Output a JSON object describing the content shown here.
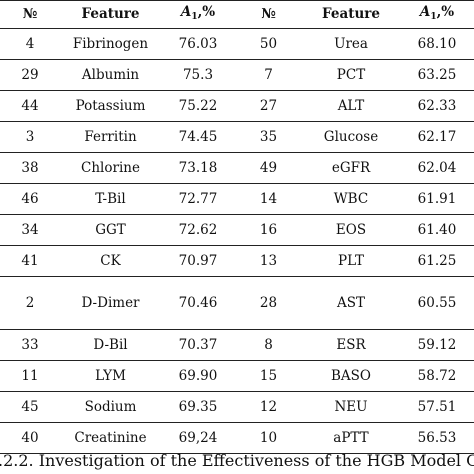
{
  "table": {
    "headers": {
      "num": "№",
      "feature": "Feature",
      "a_symbol": "A",
      "a_sub": "1",
      "a_unit": ",%"
    },
    "rows": [
      {
        "n1": "4",
        "f1": "Fibrinogen",
        "v1": "76.03",
        "n2": "50",
        "f2": "Urea",
        "v2": "68.10"
      },
      {
        "n1": "29",
        "f1": "Albumin",
        "v1": "75.3",
        "n2": "7",
        "f2": "PCT",
        "v2": "63.25"
      },
      {
        "n1": "44",
        "f1": "Potassium",
        "v1": "75.22",
        "n2": "27",
        "f2": "ALT",
        "v2": "62.33"
      },
      {
        "n1": "3",
        "f1": "Ferritin",
        "v1": "74.45",
        "n2": "35",
        "f2": "Glucose",
        "v2": "62.17"
      },
      {
        "n1": "38",
        "f1": "Chlorine",
        "v1": "73.18",
        "n2": "49",
        "f2": "eGFR",
        "v2": "62.04"
      },
      {
        "n1": "46",
        "f1": "T-Bil",
        "v1": "72.77",
        "n2": "14",
        "f2": "WBC",
        "v2": "61.91"
      },
      {
        "n1": "34",
        "f1": "GGT",
        "v1": "72.62",
        "n2": "16",
        "f2": "EOS",
        "v2": "61.40"
      },
      {
        "n1": "41",
        "f1": "CK",
        "v1": "70.97",
        "n2": "13",
        "f2": "PLT",
        "v2": "61.25"
      },
      {
        "n1": "2",
        "f1": "D-Dimer",
        "v1": "70.46",
        "n2": "28",
        "f2": "AST",
        "v2": "60.55"
      },
      {
        "n1": "33",
        "f1": "D-Bil",
        "v1": "70.37",
        "n2": "8",
        "f2": "ESR",
        "v2": "59.12"
      },
      {
        "n1": "11",
        "f1": "LYM",
        "v1": "69.90",
        "n2": "15",
        "f2": "BASO",
        "v2": "58.72"
      },
      {
        "n1": "45",
        "f1": "Sodium",
        "v1": "69.35",
        "n2": "12",
        "f2": "NEU",
        "v2": "57.51"
      },
      {
        "n1": "40",
        "f1": "Creatinine",
        "v1": "69,24",
        "n2": "10",
        "f2": "aPTT",
        "v2": "56.53"
      }
    ]
  },
  "caption": ".2.2. Investigation of the Effectiveness of the HGB Model C"
}
